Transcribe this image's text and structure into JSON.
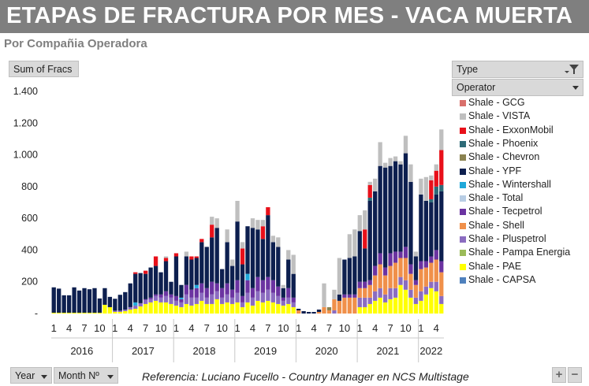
{
  "title": "ETAPAS DE FRACTURA POR MES -  VACA MUERTA",
  "subtitle": "Por Compañia Operadora",
  "value_field": "Sum of Fracs",
  "filter_field": "Type",
  "legend_field": "Operator",
  "axis_field_year": "Year",
  "axis_field_month": "Month Nº",
  "footer": "Referencia: Luciano Fucello - Country Manager en NCS Multistage",
  "zoom_in": "+",
  "zoom_out": "−",
  "chart_data": {
    "type": "bar",
    "stacked": true,
    "ylim": [
      0,
      1400
    ],
    "yticks": [
      {
        "value": 0,
        "label": "-"
      },
      {
        "value": 200,
        "label": "200"
      },
      {
        "value": 400,
        "label": "400"
      },
      {
        "value": 600,
        "label": "600"
      },
      {
        "value": 800,
        "label": "800"
      },
      {
        "value": 1000,
        "label": "1.000"
      },
      {
        "value": 1200,
        "label": "1.200"
      },
      {
        "value": 1400,
        "label": "1.400"
      }
    ],
    "grid": false,
    "legend_position": "right",
    "month_tick_labels": [
      "1",
      "4",
      "7",
      "10"
    ],
    "years": [
      {
        "label": "2016",
        "months": 12
      },
      {
        "label": "2017",
        "months": 12
      },
      {
        "label": "2018",
        "months": 12
      },
      {
        "label": "2019",
        "months": 12
      },
      {
        "label": "2020",
        "months": 12
      },
      {
        "label": "2021",
        "months": 12
      },
      {
        "label": "2022",
        "months": 5
      }
    ],
    "series": [
      {
        "name": "Shale - GCG",
        "color": "#d9706b"
      },
      {
        "name": "Shale - VISTA",
        "color": "#bfbfbf"
      },
      {
        "name": "Shale - ExxonMobil",
        "color": "#e8101a"
      },
      {
        "name": "Shale - Phoenix",
        "color": "#2e6b78"
      },
      {
        "name": "Shale - Chevron",
        "color": "#8a8250"
      },
      {
        "name": "Shale - YPF",
        "color": "#0d1f4f"
      },
      {
        "name": "Shale - Wintershall",
        "color": "#1fa8d9"
      },
      {
        "name": "Shale - Total",
        "color": "#b8cde4"
      },
      {
        "name": "Shale - Tecpetrol",
        "color": "#6b33a1"
      },
      {
        "name": "Shale - Shell",
        "color": "#f0904a"
      },
      {
        "name": "Shale - Pluspetrol",
        "color": "#8b6cc0"
      },
      {
        "name": "Shale - Pampa Energia",
        "color": "#9bbb59"
      },
      {
        "name": "Shale - PAE",
        "color": "#ffff00"
      },
      {
        "name": "Shale - CAPSA",
        "color": "#4f81bd"
      }
    ],
    "month_values": [
      {
        "PAE": 5,
        "YPF": 160
      },
      {
        "PAE": 5,
        "YPF": 152
      },
      {
        "PAE": 5,
        "YPF": 110
      },
      {
        "PAE": 5,
        "YPF": 110
      },
      {
        "PAE": 5,
        "YPF": 160
      },
      {
        "PAE": 5,
        "YPF": 140
      },
      {
        "PAE": 5,
        "YPF": 155
      },
      {
        "PAE": 5,
        "YPF": 148
      },
      {
        "PAE": 5,
        "YPF": 155
      },
      {
        "PAE": 5,
        "YPF": 90
      },
      {
        "PAE": 55,
        "YPF": 105
      },
      {
        "PAE": 40,
        "YPF": 65
      },
      {
        "PAE": 10,
        "Pluspetrol": 8,
        "YPF": 75
      },
      {
        "PAE": 10,
        "Pluspetrol": 8,
        "YPF": 100
      },
      {
        "PAE": 15,
        "Pluspetrol": 10,
        "YPF": 110
      },
      {
        "PAE": 25,
        "Pluspetrol": 15,
        "YPF": 150
      },
      {
        "PAE": 30,
        "Pluspetrol": 20,
        "Wintershall": 20,
        "YPF": 180,
        "ExxonMobil": 10
      },
      {
        "PAE": 45,
        "Pluspetrol": 20,
        "YPF": 190
      },
      {
        "PAE": 60,
        "Pluspetrol": 25,
        "Tecpetrol": 5,
        "YPF": 160,
        "ExxonMobil": 20
      },
      {
        "PAE": 70,
        "Pluspetrol": 20,
        "Tecpetrol": 10,
        "YPF": 190
      },
      {
        "PAE": 80,
        "Pluspetrol": 30,
        "Tecpetrol": 10,
        "YPF": 180,
        "ExxonMobil": 60
      },
      {
        "PAE": 70,
        "Pluspetrol": 30,
        "Tecpetrol": 20,
        "YPF": 140
      },
      {
        "PAE": 70,
        "Pluspetrol": 40,
        "Tecpetrol": 30,
        "YPF": 190,
        "ExxonMobil": 20,
        "VISTA": 10
      },
      {
        "PAE": 60,
        "Pluspetrol": 40,
        "Tecpetrol": 20,
        "YPF": 80
      },
      {
        "PAE": 50,
        "Pluspetrol": 30,
        "Tecpetrol": 30,
        "YPF": 250,
        "ExxonMobil": 20
      },
      {
        "PAE": 40,
        "Pluspetrol": 30,
        "Tecpetrol": 20,
        "Wintershall": 10,
        "YPF": 80
      },
      {
        "PAE": 60,
        "Pluspetrol": 60,
        "Tecpetrol": 60,
        "YPF": 180,
        "VISTA": 30
      },
      {
        "PAE": 50,
        "Pluspetrol": 50,
        "Tecpetrol": 50,
        "YPF": 190,
        "ExxonMobil": 20
      },
      {
        "PAE": 60,
        "Pluspetrol": 40,
        "Tecpetrol": 60,
        "Wintershall": 20,
        "YPF": 170,
        "ExxonMobil": 10
      },
      {
        "PAE": 80,
        "Pluspetrol": 50,
        "Tecpetrol": 60,
        "YPF": 260,
        "ExxonMobil": 20
      },
      {
        "PAE": 60,
        "Pluspetrol": 40,
        "Tecpetrol": 60,
        "YPF": 260
      },
      {
        "PAE": 60,
        "Pluspetrol": 60,
        "Tecpetrol": 80,
        "YPF": 280,
        "ExxonMobil": 80,
        "VISTA": 50
      },
      {
        "PAE": 90,
        "Pluspetrol": 50,
        "Tecpetrol": 50,
        "YPF": 350,
        "VISTA": 60
      },
      {
        "PAE": 60,
        "Pluspetrol": 40,
        "Tecpetrol": 60,
        "YPF": 120
      },
      {
        "PAE": 70,
        "Pluspetrol": 50,
        "Tecpetrol": 70,
        "YPF": 260,
        "VISTA": 80
      },
      {
        "PAE": 60,
        "Pluspetrol": 40,
        "Tecpetrol": 50,
        "YPF": 150,
        "VISTA": 40
      },
      {
        "PAE": 70,
        "Pluspetrol": 60,
        "Tecpetrol": 80,
        "YPF": 370,
        "VISTA": 130
      },
      {
        "PAE": 40,
        "Pluspetrol": 30,
        "Tecpetrol": 40,
        "YPF": 200,
        "ExxonMobil": 100,
        "VISTA": 40
      },
      {
        "PAE": 70,
        "Pluspetrol": 60,
        "Tecpetrol": 80,
        "Wintershall": 40,
        "YPF": 300
      },
      {
        "PAE": 50,
        "Pluspetrol": 50,
        "Tecpetrol": 60,
        "YPF": 380,
        "VISTA": 60
      },
      {
        "PAE": 80,
        "Pluspetrol": 60,
        "Tecpetrol": 90,
        "YPF": 300,
        "VISTA": 60
      },
      {
        "PAE": 70,
        "Pluspetrol": 60,
        "Tecpetrol": 80,
        "YPF": 260,
        "ExxonMobil": 80,
        "VISTA": 40
      },
      {
        "PAE": 80,
        "Pluspetrol": 70,
        "Tecpetrol": 80,
        "YPF": 390,
        "ExxonMobil": 50
      },
      {
        "PAE": 70,
        "Pluspetrol": 60,
        "Tecpetrol": 80,
        "YPF": 240,
        "VISTA": 40
      },
      {
        "PAE": 60,
        "Pluspetrol": 50,
        "Tecpetrol": 60,
        "YPF": 250,
        "VISTA": 60
      },
      {
        "PAE": 50,
        "Pluspetrol": 30,
        "Tecpetrol": 20,
        "YPF": 60,
        "VISTA": 20
      },
      {
        "PAE": 60,
        "Pluspetrol": 40,
        "Tecpetrol": 60,
        "YPF": 180,
        "VISTA": 60
      },
      {
        "PAE": 40,
        "Pluspetrol": 30,
        "Tecpetrol": 30,
        "YPF": 150,
        "VISTA": 120
      },
      {
        "Shell": 20,
        "YPF": 10
      },
      {
        "YPF": 15
      },
      {
        "YPF": 10
      },
      {
        "YPF": 10
      },
      {
        "Shell": 10,
        "YPF": 15
      },
      {
        "Shell": 40,
        "VISTA": 150
      },
      {
        "Shell": 20,
        "Chevron": 20
      },
      {
        "Shell": 70,
        "Pluspetrol": 20,
        "VISTA": 60
      },
      {
        "Shell": 80,
        "YPF": 40,
        "VISTA": 230
      },
      {
        "Shell": 100,
        "Tecpetrol": 20,
        "YPF": 220
      },
      {
        "Shell": 100,
        "Tecpetrol": 20,
        "YPF": 230,
        "VISTA": 150
      },
      {
        "Shell": 100,
        "Tecpetrol": 20,
        "YPF": 240,
        "VISTA": 170
      },
      {
        "PAE": 40,
        "Shell": 60,
        "Pluspetrol": 60,
        "Tecpetrol": 40,
        "YPF": 320,
        "VISTA": 100
      },
      {
        "PAE": 40,
        "Shell": 60,
        "Pluspetrol": 60,
        "Tecpetrol": 40,
        "YPF": 210,
        "ExxonMobil": 120,
        "VISTA": 120
      },
      {
        "PAE": 60,
        "Shell": 80,
        "Pluspetrol": 40,
        "Tecpetrol": 30,
        "YPF": 500,
        "Phoenix": 20,
        "ExxonMobil": 80,
        "VISTA": 20
      },
      {
        "PAE": 80,
        "Shell": 100,
        "Pluspetrol": 60,
        "Tecpetrol": 60,
        "YPF": 470,
        "VISTA": 80
      },
      {
        "PAE": 100,
        "Shell": 150,
        "Pluspetrol": 60,
        "Tecpetrol": 70,
        "YPF": 550,
        "VISTA": 150
      },
      {
        "PAE": 70,
        "Shell": 120,
        "Pluspetrol": 50,
        "Tecpetrol": 50,
        "YPF": 630,
        "VISTA": 30
      },
      {
        "PAE": 90,
        "Shell": 140,
        "Pluspetrol": 70,
        "Tecpetrol": 80,
        "YPF": 550,
        "VISTA": 50
      },
      {
        "PAE": 100,
        "Shell": 160,
        "Pluspetrol": 60,
        "Tecpetrol": 70,
        "YPF": 570,
        "VISTA": 30
      },
      {
        "PAE": 180,
        "Shell": 120,
        "Pluspetrol": 50,
        "Tecpetrol": 40,
        "YPF": 550,
        "VISTA": 20
      },
      {
        "PAE": 150,
        "Shell": 140,
        "Pluspetrol": 60,
        "Tecpetrol": 70,
        "YPF": 590,
        "VISTA": 110
      },
      {
        "PAE": 100,
        "Shell": 100,
        "Pluspetrol": 50,
        "Tecpetrol": 60,
        "YPF": 520,
        "VISTA": 110
      },
      {
        "PAE": 60,
        "Shell": 80,
        "Pluspetrol": 40,
        "Tecpetrol": 30,
        "YPF": 150,
        "VISTA": 30
      },
      {
        "PAE": 80,
        "Shell": 140,
        "Pluspetrol": 60,
        "Tecpetrol": 50,
        "YPF": 420,
        "VISTA": 100
      },
      {
        "PAE": 120,
        "Shell": 120,
        "Pluspetrol": 50,
        "Tecpetrol": 40,
        "YPF": 380,
        "VISTA": 150
      },
      {
        "PAE": 160,
        "Shell": 120,
        "Pluspetrol": 40,
        "Tecpetrol": 40,
        "YPF": 340,
        "Phoenix": 20,
        "ExxonMobil": 120,
        "VISTA": 30
      },
      {
        "PAE": 140,
        "Shell": 140,
        "Pluspetrol": 60,
        "Tecpetrol": 60,
        "YPF": 350,
        "Phoenix": 50,
        "ExxonMobil": 100,
        "VISTA": 40
      },
      {
        "PAE": 60,
        "Shell": 150,
        "Pluspetrol": 50,
        "Tecpetrol": 70,
        "YPF": 440,
        "Phoenix": 40,
        "ExxonMobil": 220,
        "VISTA": 130
      }
    ]
  }
}
